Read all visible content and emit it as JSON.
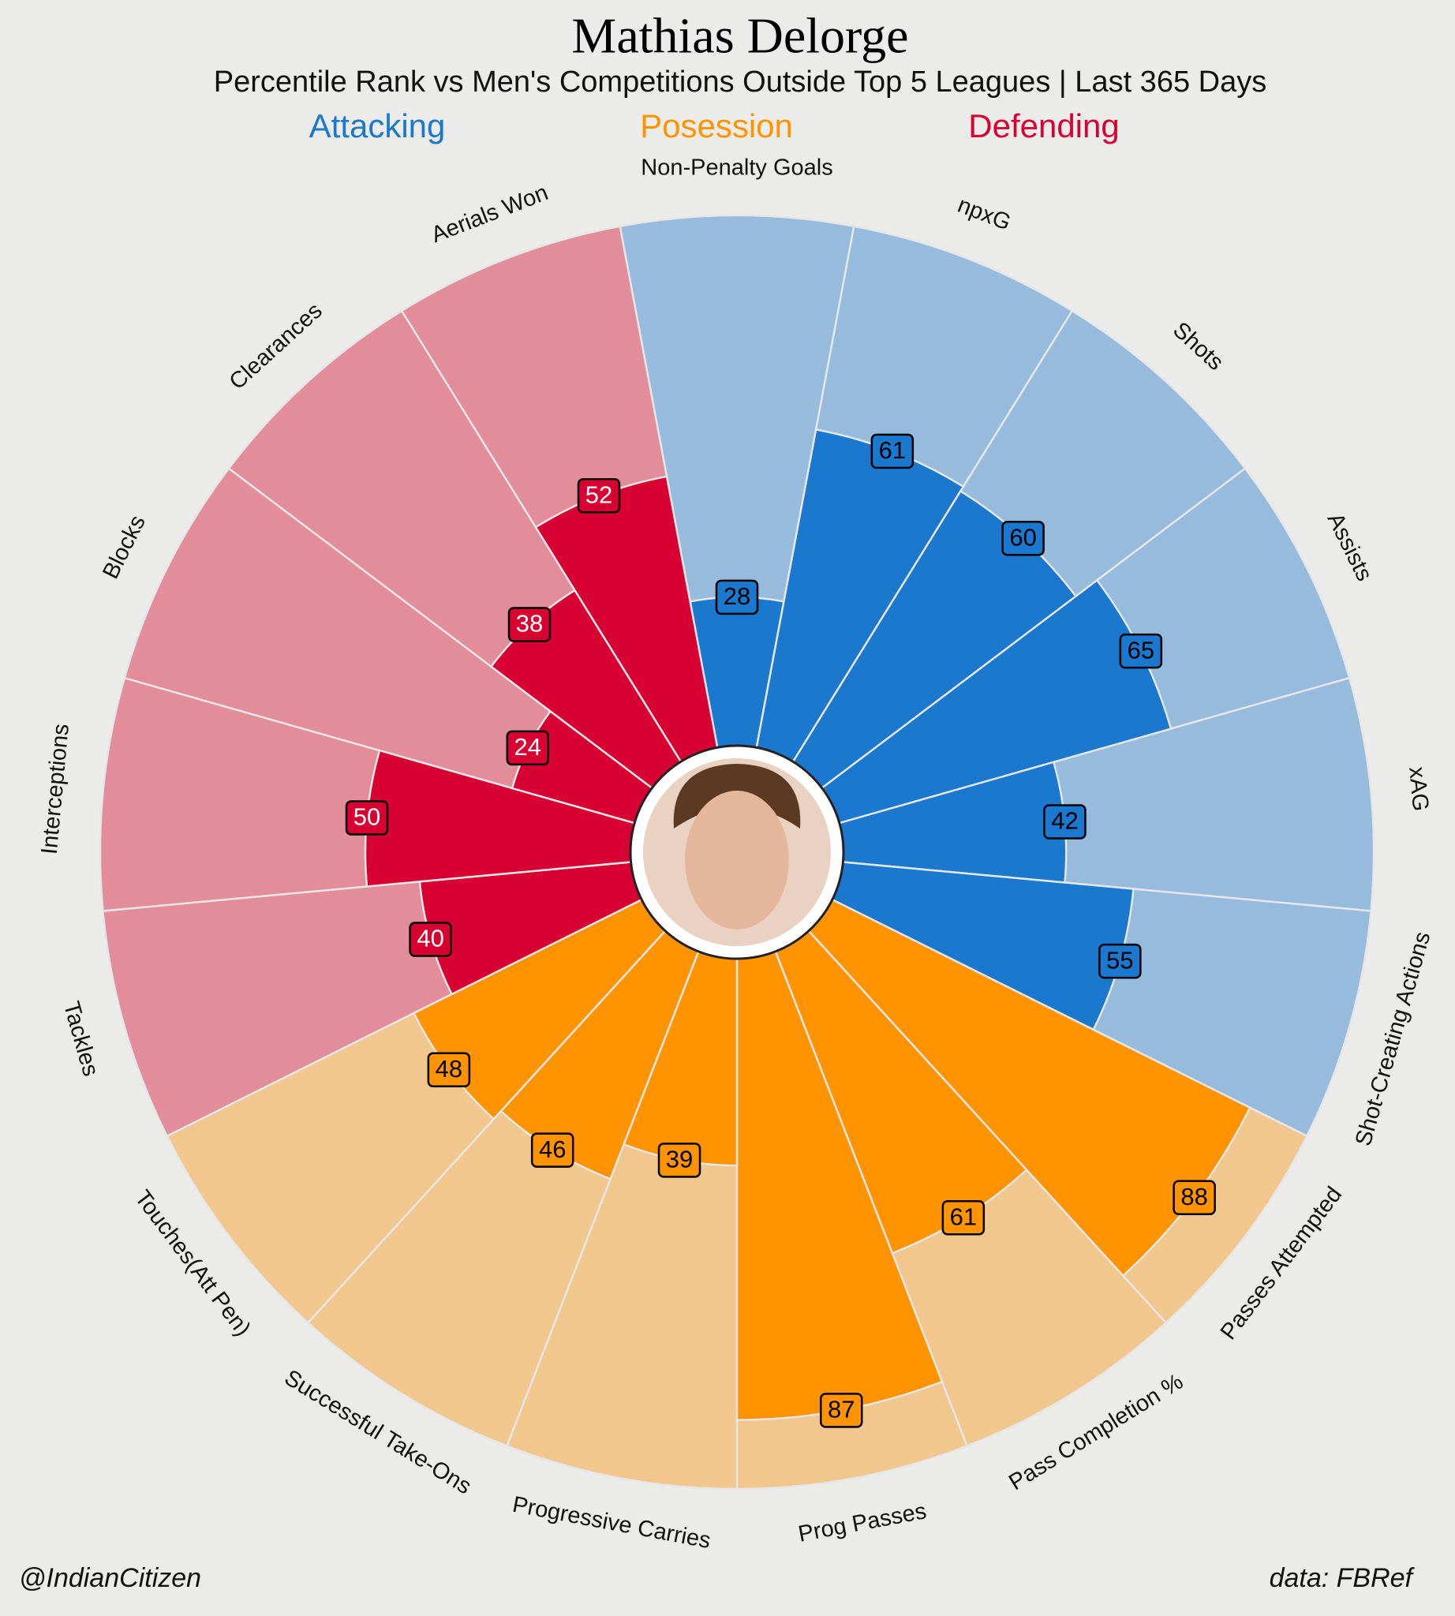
{
  "chart_data": {
    "type": "pizza",
    "title": "Mathias Delorge",
    "subtitle": "Percentile Rank vs Men's Competitions Outside Top 5 Leagues | Last 365 Days",
    "rlim": [
      0,
      100
    ],
    "series": [
      {
        "name": "Attacking",
        "color": "#1a78cf",
        "background_color": "#97bbdd",
        "label_text_color": "#000000",
        "categories": [
          "Non-Penalty Goals",
          "npxG",
          "Shots",
          "Assists",
          "xAG",
          "Shot-Creating Actions"
        ],
        "values": [
          28,
          61,
          60,
          65,
          42,
          55
        ]
      },
      {
        "name": "Posession",
        "color": "#ff9300",
        "background_color": "#f1c78d",
        "label_text_color": "#000000",
        "categories": [
          "Passes Attempted",
          "Pass Completion %",
          "Prog Passes",
          "Progressive Carries",
          "Successful Take-Ons",
          "Touches(Att Pen)"
        ],
        "values": [
          88,
          61,
          87,
          39,
          46,
          48
        ]
      },
      {
        "name": "Defending",
        "color": "#d70232",
        "background_color": "#e38c9a",
        "label_text_color": "#ffffff",
        "categories": [
          "Tackles",
          "Interceptions",
          "Blocks",
          "Clearances",
          "Aerials Won"
        ],
        "values": [
          40,
          50,
          24,
          38,
          52
        ]
      }
    ],
    "credit": "@IndianCitizen",
    "source": "data: FBRef"
  }
}
